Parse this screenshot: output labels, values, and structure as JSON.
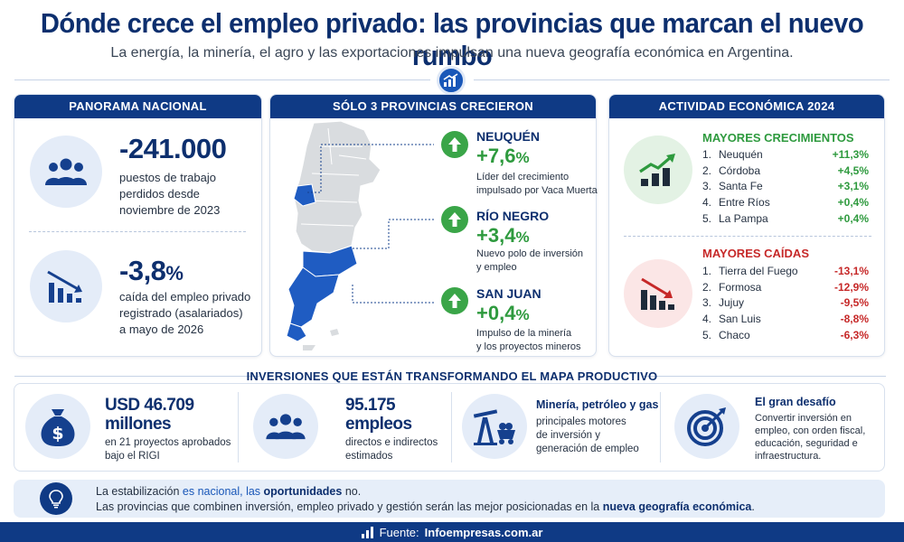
{
  "header": {
    "title": "Dónde crece el empleo privado: las provincias que marcan el nuevo rumbo",
    "subtitle": "La energía, la minería, el agro y las exportaciones impulsan una nueva geografía económica en Argentina."
  },
  "panorama": {
    "heading": "PANORAMA NACIONAL",
    "stat1": {
      "value": "-241.000",
      "text": [
        "puestos de trabajo",
        "perdidos desde",
        "noviembre de 2023"
      ]
    },
    "stat2": {
      "value": "-3,8",
      "unit": "%",
      "text": [
        "caída del empleo privado",
        "registrado (asalariados)",
        "a mayo de 2026"
      ]
    }
  },
  "provinces": {
    "heading": "SÓLO 3 PROVINCIAS CRECIERON",
    "items": [
      {
        "name": "NEUQUÉN",
        "value": "+7,6",
        "unit": "%",
        "desc": [
          "Líder del crecimiento",
          "impulsado por Vaca Muerta"
        ]
      },
      {
        "name": "RÍO NEGRO",
        "value": "+3,4",
        "unit": "%",
        "desc": [
          "Nuevo polo de inversión",
          "y empleo"
        ]
      },
      {
        "name": "SAN JUAN",
        "value": "+0,4",
        "unit": "%",
        "desc": [
          "Impulso de la minería",
          "y los proyectos mineros"
        ]
      }
    ]
  },
  "activity": {
    "heading": "ACTIVIDAD ECONÓMICA 2024",
    "growth_heading": "MAYORES CRECIMIENTOS",
    "growth": [
      {
        "rank": "1.",
        "name": "Neuquén",
        "value": "+11,3%"
      },
      {
        "rank": "2.",
        "name": "Córdoba",
        "value": "+4,5%"
      },
      {
        "rank": "3.",
        "name": "Santa Fe",
        "value": "+3,1%"
      },
      {
        "rank": "4.",
        "name": "Entre Ríos",
        "value": "+0,4%"
      },
      {
        "rank": "5.",
        "name": "La Pampa",
        "value": "+0,4%"
      }
    ],
    "decline_heading": "MAYORES CAÍDAS",
    "decline": [
      {
        "rank": "1.",
        "name": "Tierra del Fuego",
        "value": "-13,1%"
      },
      {
        "rank": "2.",
        "name": "Formosa",
        "value": "-12,9%"
      },
      {
        "rank": "3.",
        "name": "Jujuy",
        "value": "-9,5%"
      },
      {
        "rank": "4.",
        "name": "San Luis",
        "value": "-8,8%"
      },
      {
        "rank": "5.",
        "name": "Chaco",
        "value": "-6,3%"
      }
    ]
  },
  "investments": {
    "heading": "INVERSIONES QUE ESTÁN TRANSFORMANDO EL MAPA PRODUCTIVO",
    "usd": {
      "value": "USD 46.709",
      "value2": "millones",
      "text": [
        "en 21 proyectos aprobados",
        "bajo el RIGI"
      ]
    },
    "jobs": {
      "value": "95.175",
      "value2": "empleos",
      "text": [
        "directos e indirectos",
        "estimados"
      ]
    },
    "sectors": {
      "title": "Minería, petróleo y gas",
      "text": [
        "principales motores",
        "de inversión y",
        "generación de empleo"
      ]
    },
    "challenge": {
      "title": "El gran desafío",
      "text": [
        "Convertir inversión en",
        "empleo, con orden fiscal,",
        "educación, seguridad e",
        "infraestructura."
      ]
    }
  },
  "banner": {
    "line1_a": "La estabilización",
    "line1_b": " es nacional, las ",
    "line1_c": "oportunidades",
    "line1_d": " no.",
    "line2_a": "Las provincias que combinen inversión, empleo privado y gestión serán las mejor posicionadas en la ",
    "line2_b": "nueva geografía económica",
    "line2_c": "."
  },
  "footer": {
    "prefix": "Fuente: ",
    "source": "Infoempresas.com.ar"
  },
  "colors": {
    "navy": "#0f3a85",
    "green": "#2e9a3e",
    "red": "#c62828",
    "light": "#e6eef9"
  }
}
